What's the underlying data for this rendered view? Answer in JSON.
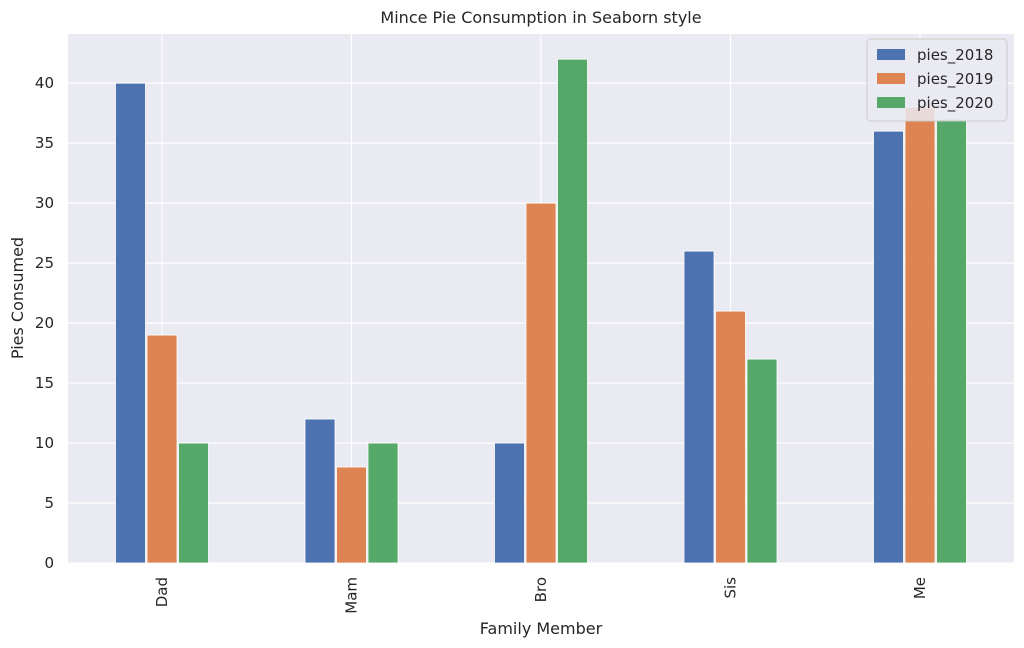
{
  "chart_data": {
    "type": "bar",
    "title": "Mince Pie Consumption in Seaborn style",
    "xlabel": "Family Member",
    "ylabel": "Pies Consumed",
    "categories": [
      "Dad",
      "Mam",
      "Bro",
      "Sis",
      "Me"
    ],
    "series": [
      {
        "name": "pies_2018",
        "color": "#4c72b0",
        "values": [
          40,
          12,
          10,
          26,
          36
        ]
      },
      {
        "name": "pies_2019",
        "color": "#dd8452",
        "values": [
          19,
          8,
          30,
          21,
          38
        ]
      },
      {
        "name": "pies_2020",
        "color": "#55a868",
        "values": [
          10,
          10,
          42,
          17,
          37
        ]
      }
    ],
    "ylim": [
      0,
      44.1
    ],
    "yticks": [
      0,
      5,
      10,
      15,
      20,
      25,
      30,
      35,
      40
    ],
    "grid": true,
    "legend_position": "top-right",
    "background_color": "#eaeaf2"
  }
}
